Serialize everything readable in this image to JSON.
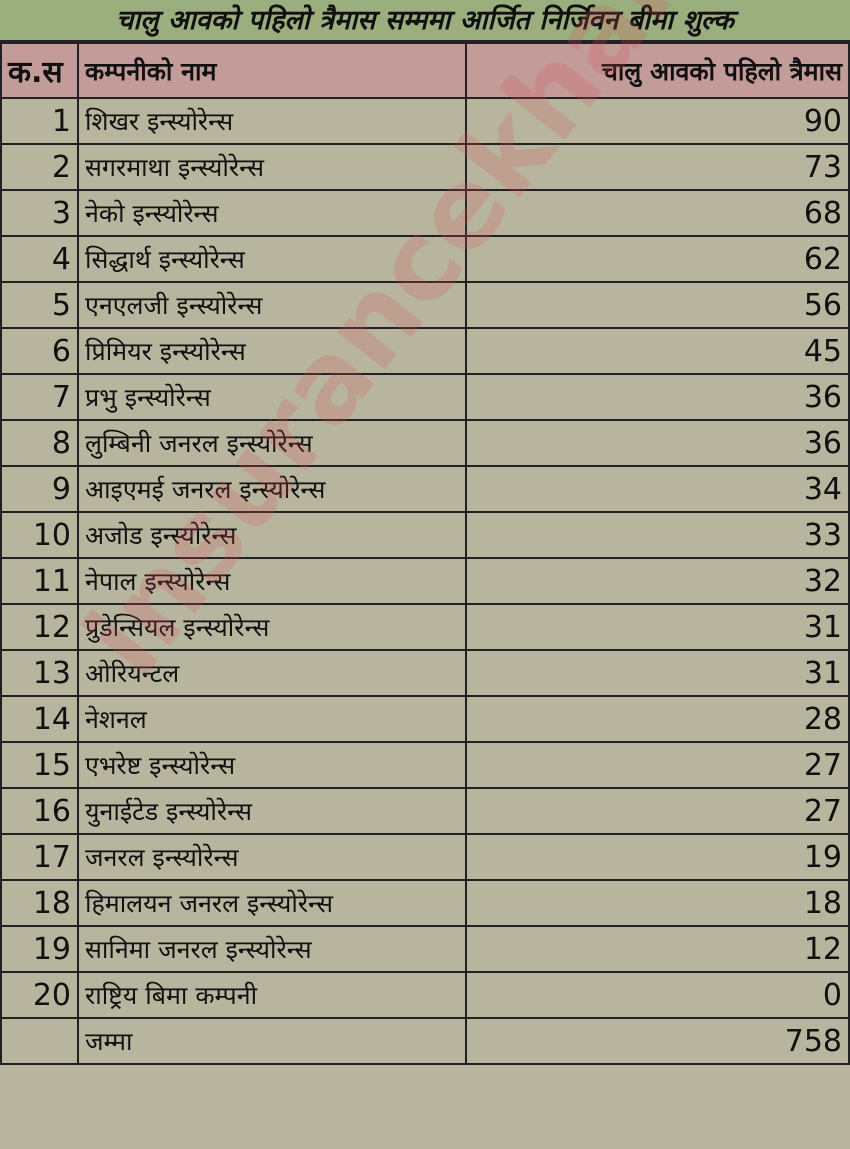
{
  "chart_data": {
    "type": "table",
    "title": "चालु आवको पहिलो त्रैमास सम्ममा आर्जित निर्जिवन बीमा शुल्क",
    "columns": [
      "क.स",
      "कम्पनीको नाम",
      "चालु आवको  पहिलो त्रैमास"
    ],
    "rows": [
      [
        "1",
        "शिखर इन्स्योरेन्स",
        "90"
      ],
      [
        "2",
        "सगरमाथा इन्स्योरेन्स",
        "73"
      ],
      [
        "3",
        "नेको इन्स्योरेन्स",
        "68"
      ],
      [
        "4",
        "सिद्धार्थ इन्स्योरेन्स",
        "62"
      ],
      [
        "5",
        "एनएलजी इन्स्योरेन्स",
        "56"
      ],
      [
        "6",
        "प्रिमियर इन्स्योरेन्स",
        "45"
      ],
      [
        "7",
        "प्रभु इन्स्योरेन्स",
        "36"
      ],
      [
        "8",
        "लुम्बिनी जनरल इन्स्योरेन्स",
        "36"
      ],
      [
        "9",
        "आइएमई जनरल इन्स्योरेन्स",
        "34"
      ],
      [
        "10",
        "अजोड इन्स्योरेन्स",
        "33"
      ],
      [
        "11",
        "नेपाल इन्स्योरेन्स",
        "32"
      ],
      [
        "12",
        "प्रुडेन्सियल इन्स्योरेन्स",
        "31"
      ],
      [
        "13",
        "ओरियन्टल",
        "31"
      ],
      [
        "14",
        "नेशनल",
        "28"
      ],
      [
        "15",
        "एभरेष्ट इन्स्योरेन्स",
        "27"
      ],
      [
        "16",
        "युनाईटेड इन्स्योरेन्स",
        "27"
      ],
      [
        "17",
        "जनरल इन्स्योरेन्स",
        "19"
      ],
      [
        "18",
        "हिमालयन जनरल इन्स्योरेन्स",
        "18"
      ],
      [
        "19",
        "सानिमा जनरल इन्स्योरेन्स",
        "12"
      ],
      [
        "20",
        "राष्ट्रिय बिमा कम्पनी",
        "0"
      ]
    ],
    "total": {
      "label": "जम्मा",
      "value": "758"
    }
  },
  "watermark": "insurancekhabar",
  "colors": {
    "title_bg": "#9bae7e",
    "header_bg": "#c39b99",
    "body_bg": "#b8b59e"
  }
}
